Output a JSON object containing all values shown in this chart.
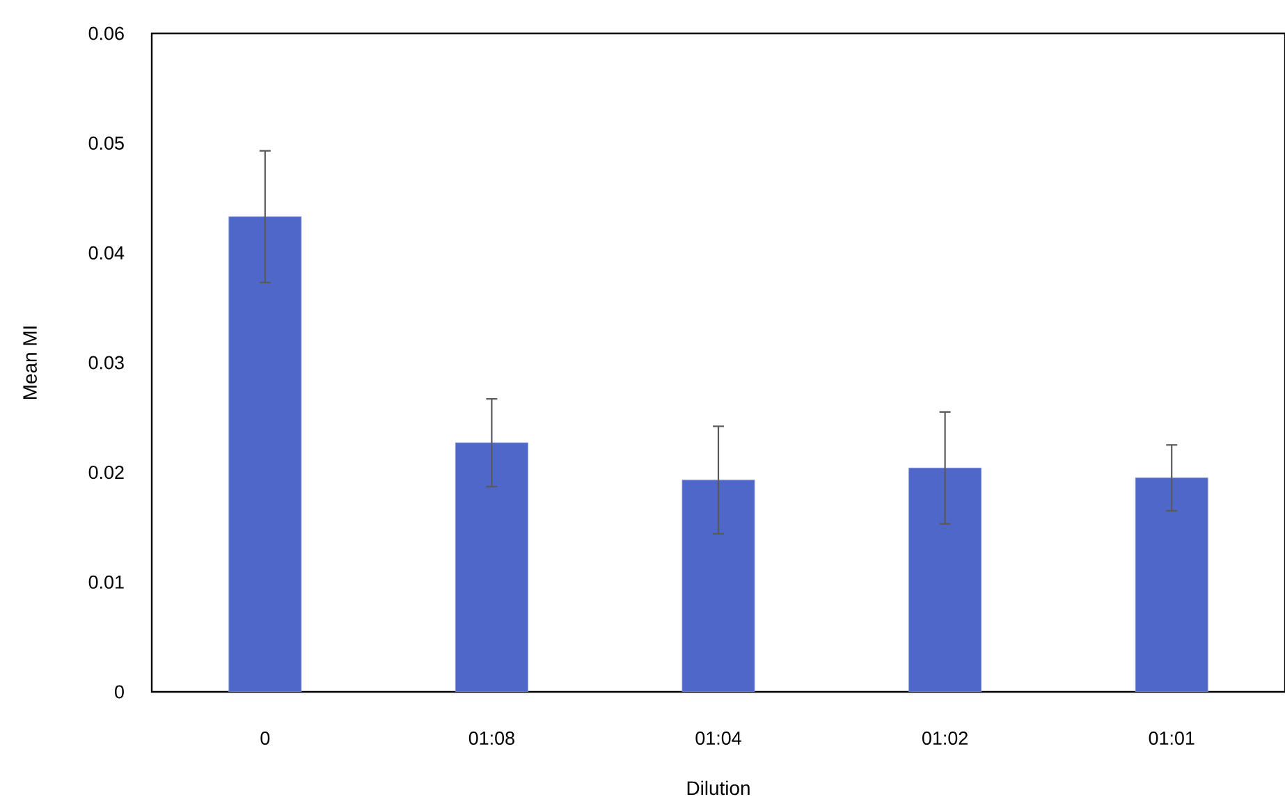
{
  "chart_data": {
    "type": "bar",
    "xlabel": "Dilution",
    "ylabel": "Mean MI",
    "categories": [
      "0",
      "01:08",
      "01:04",
      "01:02",
      "01:01"
    ],
    "values": [
      0.0433,
      0.0227,
      0.0193,
      0.0204,
      0.0195
    ],
    "errors": [
      0.006,
      0.004,
      0.0049,
      0.0051,
      0.003
    ],
    "color": "#4f67c8",
    "ylim": [
      0,
      0.06
    ],
    "yticks": [
      0,
      0.01,
      0.02,
      0.03,
      0.04,
      0.05,
      0.06
    ],
    "grid": false
  }
}
